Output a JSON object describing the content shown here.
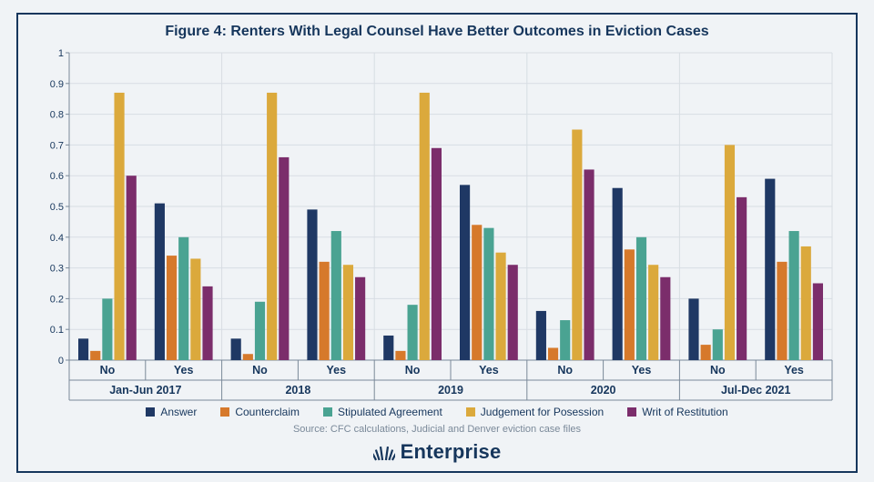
{
  "title": "Figure 4: Renters With Legal Counsel Have Better Outcomes in Eviction Cases",
  "source": "Source: CFC calculations, Judicial and Denver eviction case files",
  "logo_text": "Enterprise",
  "chart": {
    "type": "bar",
    "ylim": [
      0,
      1
    ],
    "ytick_step": 0.1,
    "grid_color": "#d7dde3",
    "tick_font_size": 11,
    "tick_color": "#16365c",
    "axis_color": "#7a8999",
    "background_color": "#f0f3f6",
    "series": [
      {
        "name": "Answer",
        "color": "#1f3864"
      },
      {
        "name": "Counterclaim",
        "color": "#d6792b"
      },
      {
        "name": "Stipulated Agreement",
        "color": "#4aa392"
      },
      {
        "name": "Judgement for Posession",
        "color": "#dba93c"
      },
      {
        "name": "Writ of Restitution",
        "color": "#7b2d6b"
      }
    ],
    "year_labels": [
      "Jan-Jun 2017",
      "2018",
      "2019",
      "2020",
      "Jul-Dec 2021"
    ],
    "subgroup_labels": [
      "No",
      "Yes"
    ],
    "groups": [
      {
        "year": "Jan-Jun 2017",
        "subgroups": [
          {
            "label": "No",
            "values": [
              0.07,
              0.03,
              0.2,
              0.87,
              0.6
            ]
          },
          {
            "label": "Yes",
            "values": [
              0.51,
              0.34,
              0.4,
              0.33,
              0.24
            ]
          }
        ]
      },
      {
        "year": "2018",
        "subgroups": [
          {
            "label": "No",
            "values": [
              0.07,
              0.02,
              0.19,
              0.87,
              0.66
            ]
          },
          {
            "label": "Yes",
            "values": [
              0.49,
              0.32,
              0.42,
              0.31,
              0.27
            ]
          }
        ]
      },
      {
        "year": "2019",
        "subgroups": [
          {
            "label": "No",
            "values": [
              0.08,
              0.03,
              0.18,
              0.87,
              0.69
            ]
          },
          {
            "label": "Yes",
            "values": [
              0.57,
              0.44,
              0.43,
              0.35,
              0.31
            ]
          }
        ]
      },
      {
        "year": "2020",
        "subgroups": [
          {
            "label": "No",
            "values": [
              0.16,
              0.04,
              0.13,
              0.75,
              0.62
            ]
          },
          {
            "label": "Yes",
            "values": [
              0.56,
              0.36,
              0.4,
              0.31,
              0.27
            ]
          }
        ]
      },
      {
        "year": "Jul-Dec 2021",
        "subgroups": [
          {
            "label": "No",
            "values": [
              0.2,
              0.05,
              0.1,
              0.7,
              0.53
            ]
          },
          {
            "label": "Yes",
            "values": [
              0.59,
              0.32,
              0.42,
              0.37,
              0.25
            ]
          }
        ]
      }
    ]
  }
}
